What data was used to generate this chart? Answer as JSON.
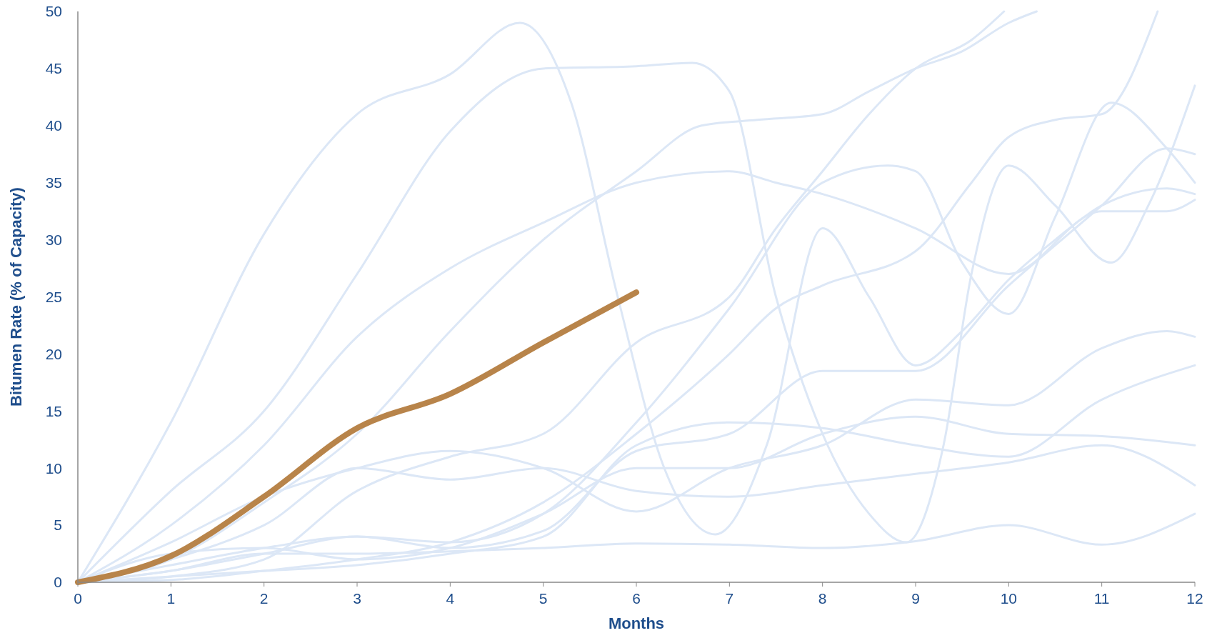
{
  "chart_data": {
    "type": "line",
    "xlabel": "Months",
    "ylabel": "Bitumen Rate (% of Capacity)",
    "xlim": [
      0,
      12
    ],
    "xticks": [
      0,
      1,
      2,
      3,
      4,
      5,
      6,
      7,
      8,
      9,
      10,
      11,
      12
    ],
    "ylim": [
      0,
      50
    ],
    "yticks": [
      0,
      5,
      10,
      15,
      20,
      25,
      30,
      35,
      40,
      45,
      50
    ],
    "grid": false,
    "marker": "none",
    "line_style": "solid",
    "series": [
      {
        "color": "#dce7f6",
        "x": [
          0,
          1,
          2,
          3,
          4,
          4.75,
          5.3,
          5.8,
          6.3,
          6.85,
          7.4,
          8,
          8.5,
          9,
          9.5,
          10,
          10.5,
          11,
          11.7,
          12
        ],
        "values": [
          0,
          14,
          30.5,
          41,
          44.5,
          49,
          42,
          25,
          10,
          4.2,
          12,
          31,
          25,
          19,
          22,
          26.5,
          30,
          33,
          34.5,
          34
        ]
      },
      {
        "color": "#dce7f6",
        "x": [
          0,
          1,
          2,
          3,
          4,
          5,
          6,
          6.6,
          7,
          7.5,
          8,
          8.5,
          8.9,
          9.3,
          9.6,
          10,
          10.5,
          11.1,
          11.5,
          12
        ],
        "values": [
          0,
          8,
          15,
          27,
          39.5,
          45,
          45.2,
          45.5,
          43,
          25,
          13,
          6,
          3.5,
          12,
          27,
          36.5,
          33,
          28,
          33,
          43.5
        ]
      },
      {
        "color": "#dce7f6",
        "x": [
          0,
          1,
          2,
          3,
          4,
          5,
          6,
          7,
          7.5,
          8,
          9,
          10,
          11,
          11.7,
          12
        ],
        "values": [
          0,
          5,
          12,
          21.5,
          27.5,
          31.5,
          35,
          36,
          35,
          34,
          31,
          27,
          32.5,
          32.5,
          33.5
        ]
      },
      {
        "color": "#dce7f6",
        "x": [
          0,
          1,
          2,
          3,
          4,
          5,
          6,
          6.7,
          7.3,
          8,
          8.5,
          9,
          9.5,
          10,
          10.3
        ],
        "values": [
          0,
          2,
          7,
          13,
          22,
          30,
          36,
          40,
          40.5,
          41,
          43,
          45,
          46.5,
          49,
          50
        ]
      },
      {
        "color": "#dce7f6",
        "x": [
          0,
          1,
          2,
          3,
          4,
          5,
          6,
          7,
          7.5,
          8,
          8.5,
          9,
          9.6,
          9.95
        ],
        "values": [
          0,
          0.5,
          2,
          8,
          11,
          13,
          21,
          25,
          31,
          36,
          41,
          45,
          47.5,
          50
        ]
      },
      {
        "color": "#dce7f6",
        "x": [
          0,
          1,
          2,
          3,
          4,
          5,
          6,
          7,
          8,
          8.7,
          9,
          9.5,
          10,
          10.5,
          11.1,
          11.7,
          12
        ],
        "values": [
          0,
          1,
          2.5,
          4,
          3.5,
          6,
          14,
          24,
          35,
          36.5,
          36,
          28,
          23.5,
          32,
          42,
          38,
          35
        ]
      },
      {
        "color": "#dce7f6",
        "x": [
          0,
          1,
          2,
          3,
          4,
          5,
          6,
          7,
          8,
          9,
          10,
          11,
          12
        ],
        "values": [
          0,
          2,
          5,
          10,
          9,
          10,
          8,
          7.5,
          8.5,
          9.5,
          10.5,
          12,
          8.5
        ]
      },
      {
        "color": "#dce7f6",
        "x": [
          0,
          1,
          2,
          3,
          4,
          5,
          6,
          7,
          8,
          9,
          10,
          11,
          11.7,
          12
        ],
        "values": [
          0,
          3.5,
          7.5,
          10,
          11.5,
          10,
          6.2,
          10,
          12,
          16,
          15.5,
          20.5,
          22,
          21.5
        ]
      },
      {
        "color": "#dce7f6",
        "x": [
          0,
          1,
          2,
          3,
          4,
          5,
          6,
          7,
          7.5,
          8,
          9,
          9.6,
          10,
          10.5,
          11,
          11.6
        ],
        "values": [
          0,
          0.2,
          1,
          2,
          3.5,
          7,
          13,
          20,
          24,
          26,
          29,
          35,
          39,
          40.5,
          41,
          50
        ]
      },
      {
        "color": "#dce7f6",
        "x": [
          0,
          1,
          2,
          3,
          4,
          5,
          6,
          7,
          8,
          9,
          10,
          11,
          12
        ],
        "values": [
          0,
          2.5,
          3,
          2,
          3,
          6,
          10,
          10,
          13,
          14.5,
          13,
          12.8,
          12
        ]
      },
      {
        "color": "#dce7f6",
        "x": [
          0,
          1,
          2,
          3,
          4,
          5,
          6,
          7,
          8,
          9,
          10,
          11,
          11.7,
          12
        ],
        "values": [
          0,
          1.5,
          3,
          4,
          3,
          4.5,
          11.5,
          13,
          18.5,
          18.5,
          26,
          33,
          38,
          37.5
        ]
      },
      {
        "color": "#dce7f6",
        "x": [
          0,
          1,
          2,
          3,
          4,
          5,
          6,
          7,
          8,
          9,
          10,
          11,
          12
        ],
        "values": [
          0,
          0.5,
          1,
          1.5,
          2.5,
          4,
          12,
          14,
          13.5,
          12,
          11,
          16,
          19
        ]
      },
      {
        "color": "#dce7f6",
        "x": [
          0,
          1,
          2,
          3,
          4,
          5,
          6,
          7,
          8,
          9,
          10,
          11,
          12
        ],
        "values": [
          0,
          1,
          2.5,
          2.5,
          2.7,
          3,
          3.4,
          3.3,
          3,
          3.6,
          5,
          3.3,
          6
        ]
      },
      {
        "color": "#b8844a",
        "x": [
          0,
          1,
          2,
          3,
          4,
          5,
          6
        ],
        "values": [
          0,
          2.3,
          7.5,
          13.5,
          16.5,
          21,
          25.4
        ]
      }
    ]
  }
}
